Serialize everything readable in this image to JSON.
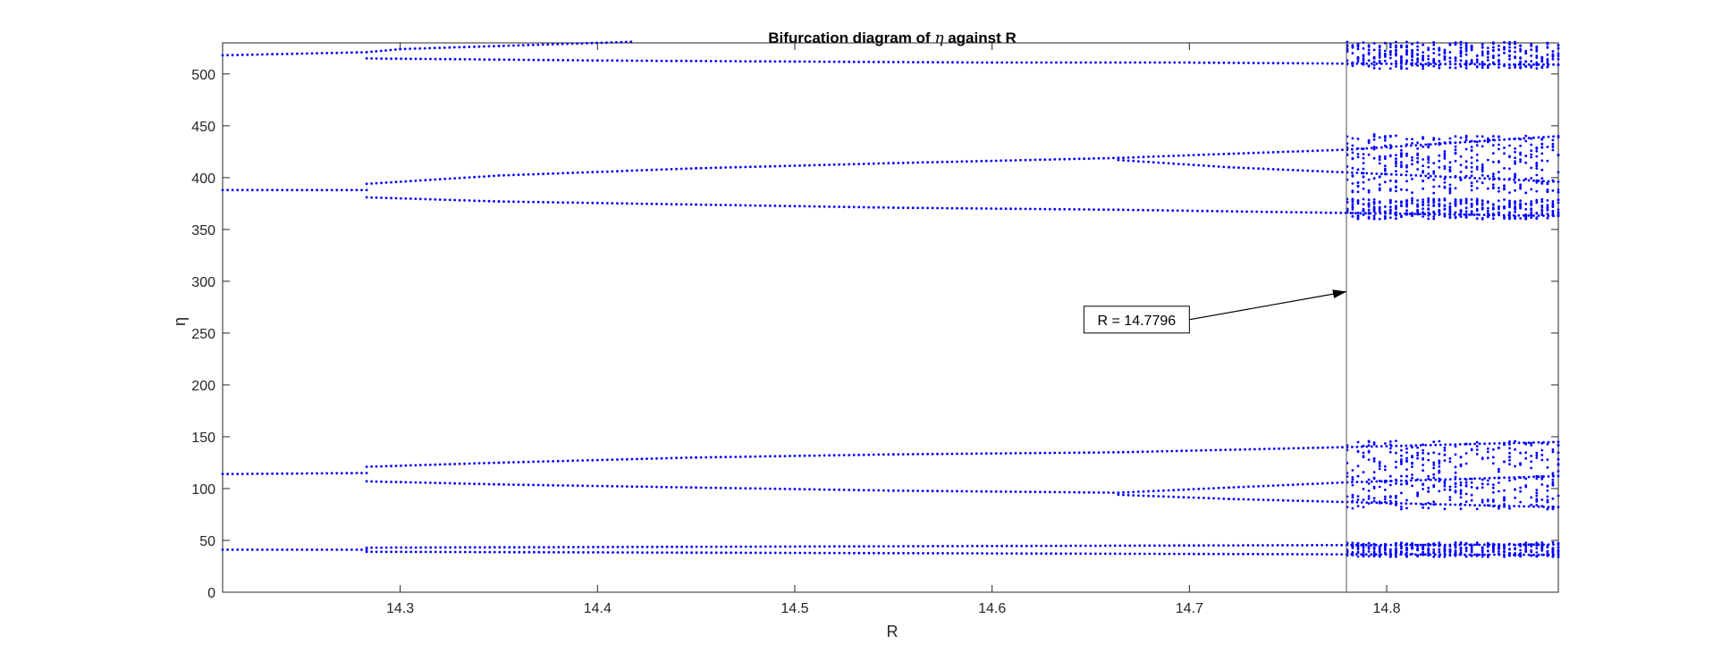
{
  "chart_data": {
    "type": "scatter",
    "title_prefix": "Bifurcation diagram of ",
    "title_symbol": "η",
    "title_suffix": " against R",
    "xlabel": "R",
    "ylabel": "η",
    "xlim": [
      14.21,
      14.887
    ],
    "ylim": [
      0,
      530
    ],
    "xticks": [
      14.3,
      14.4,
      14.5,
      14.6,
      14.7,
      14.8
    ],
    "xtick_labels": [
      "14.3",
      "14.4",
      "14.5",
      "14.6",
      "14.7",
      "14.8"
    ],
    "yticks": [
      0,
      50,
      100,
      150,
      200,
      250,
      300,
      350,
      400,
      450,
      500
    ],
    "ytick_labels": [
      "0",
      "50",
      "100",
      "150",
      "200",
      "250",
      "300",
      "350",
      "400",
      "450",
      "500"
    ],
    "marker_color": "#0000ff",
    "grid": false,
    "series": [
      {
        "branch": "top-single",
        "points": [
          [
            14.21,
            518
          ],
          [
            14.283,
            521
          ]
        ]
      },
      {
        "branch": "top-upper-short",
        "points": [
          [
            14.283,
            521
          ],
          [
            14.3,
            524
          ],
          [
            14.35,
            527
          ],
          [
            14.417,
            531
          ]
        ]
      },
      {
        "branch": "top-lower",
        "points": [
          [
            14.283,
            515
          ],
          [
            14.4,
            513
          ],
          [
            14.5,
            512
          ],
          [
            14.6,
            511
          ],
          [
            14.7,
            511
          ],
          [
            14.78,
            510
          ],
          [
            14.887,
            509
          ]
        ]
      },
      {
        "branch": "upper-single",
        "points": [
          [
            14.21,
            388
          ],
          [
            14.283,
            388
          ]
        ]
      },
      {
        "branch": "upper-rise",
        "points": [
          [
            14.283,
            394
          ],
          [
            14.35,
            402
          ],
          [
            14.45,
            409
          ],
          [
            14.55,
            414
          ],
          [
            14.664,
            419
          ]
        ]
      },
      {
        "branch": "upper-fall",
        "points": [
          [
            14.283,
            381
          ],
          [
            14.35,
            377
          ],
          [
            14.45,
            374
          ],
          [
            14.55,
            371
          ],
          [
            14.664,
            369
          ],
          [
            14.887,
            363
          ]
        ]
      },
      {
        "branch": "upper-split-high",
        "points": [
          [
            14.664,
            419
          ],
          [
            14.72,
            423
          ],
          [
            14.78,
            427
          ],
          [
            14.887,
            440
          ]
        ]
      },
      {
        "branch": "upper-split-low",
        "points": [
          [
            14.664,
            417
          ],
          [
            14.72,
            410
          ],
          [
            14.78,
            405
          ],
          [
            14.887,
            396
          ]
        ]
      },
      {
        "branch": "lower-single",
        "points": [
          [
            14.21,
            114
          ],
          [
            14.283,
            115
          ]
        ]
      },
      {
        "branch": "lower-rise",
        "points": [
          [
            14.283,
            121
          ],
          [
            14.35,
            125
          ],
          [
            14.45,
            130
          ],
          [
            14.55,
            133
          ],
          [
            14.664,
            135
          ],
          [
            14.78,
            140
          ],
          [
            14.887,
            145
          ]
        ]
      },
      {
        "branch": "lower-fall",
        "points": [
          [
            14.283,
            107
          ],
          [
            14.35,
            104
          ],
          [
            14.45,
            101
          ],
          [
            14.55,
            98
          ],
          [
            14.664,
            96
          ]
        ]
      },
      {
        "branch": "lower-split-high",
        "points": [
          [
            14.664,
            96
          ],
          [
            14.72,
            101
          ],
          [
            14.78,
            106
          ],
          [
            14.887,
            112
          ]
        ]
      },
      {
        "branch": "lower-split-low",
        "points": [
          [
            14.664,
            94
          ],
          [
            14.72,
            90
          ],
          [
            14.78,
            87
          ],
          [
            14.887,
            82
          ]
        ]
      },
      {
        "branch": "bottom-single",
        "points": [
          [
            14.21,
            41
          ],
          [
            14.283,
            41
          ]
        ]
      },
      {
        "branch": "bottom-high",
        "points": [
          [
            14.283,
            43
          ],
          [
            14.887,
            46
          ]
        ]
      },
      {
        "branch": "bottom-low",
        "points": [
          [
            14.283,
            39
          ],
          [
            14.887,
            36
          ]
        ]
      }
    ],
    "chaotic_bands": [
      [
        14.78,
        14.887,
        505,
        531
      ],
      [
        14.78,
        14.887,
        360,
        380
      ],
      [
        14.78,
        14.887,
        385,
        442
      ],
      [
        14.78,
        14.887,
        80,
        146
      ],
      [
        14.78,
        14.887,
        34,
        48
      ]
    ],
    "marker_line_x": 14.7796,
    "annotation": {
      "text": "R = 14.7796",
      "arrow_tail": [
        14.7,
        263
      ],
      "arrow_head": [
        14.7796,
        290
      ]
    }
  }
}
